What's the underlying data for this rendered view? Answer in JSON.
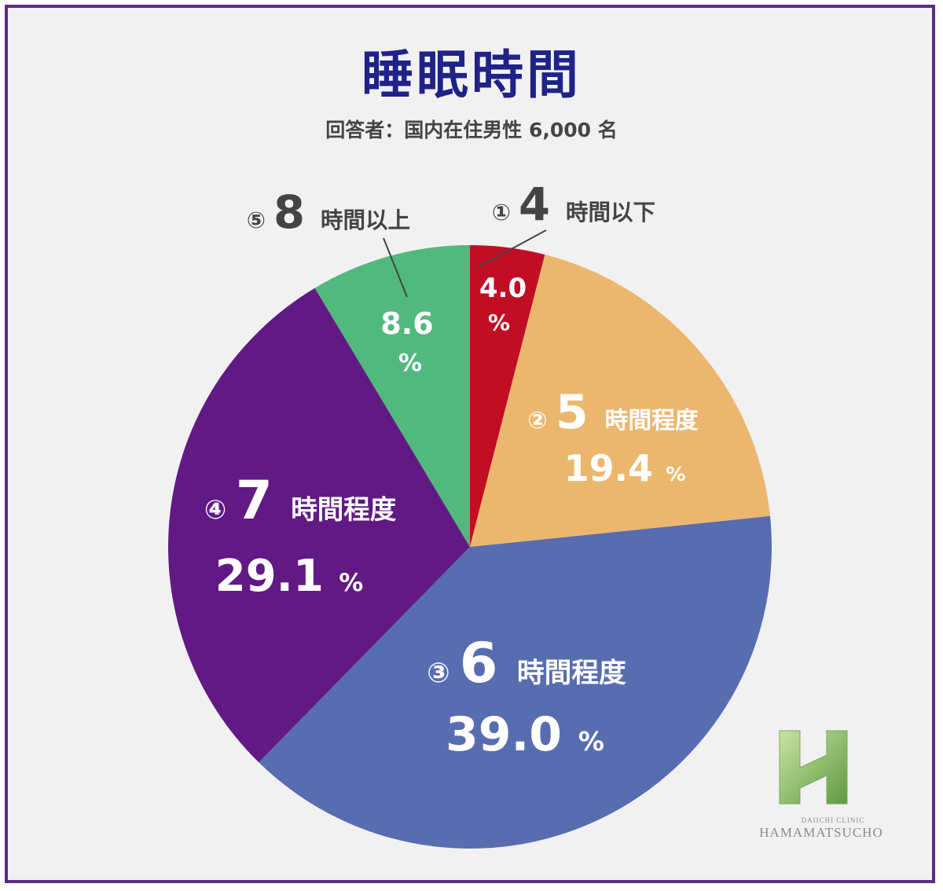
{
  "header": {
    "title": "睡眠時間",
    "subtitle": "回答者：国内在住男性 6,000 名"
  },
  "chart_data": {
    "type": "pie",
    "title": "睡眠時間",
    "subtitle": "回答者：国内在住男性 6,000 名",
    "slices": [
      {
        "marker": "①",
        "num": "4",
        "label": "時間以下",
        "value": 4.0,
        "value_text": "4.0",
        "unit": "%",
        "color": "#c10e24"
      },
      {
        "marker": "②",
        "num": "5",
        "label": "時間程度",
        "value": 19.4,
        "value_text": "19.4",
        "unit": "%",
        "color": "#ebb76e"
      },
      {
        "marker": "③",
        "num": "6",
        "label": "時間程度",
        "value": 39.0,
        "value_text": "39.0",
        "unit": "%",
        "color": "#586db0"
      },
      {
        "marker": "④",
        "num": "7",
        "label": "時間程度",
        "value": 29.1,
        "value_text": "29.1",
        "unit": "%",
        "color": "#611984"
      },
      {
        "marker": "⑤",
        "num": "8",
        "label": "時間以上",
        "value": 8.6,
        "value_text": "8.6",
        "unit": "%",
        "color": "#51b97d"
      }
    ]
  },
  "logo": {
    "line1": "DAIICHI CLINIC",
    "line2": "HAMAMATSUCHO"
  }
}
